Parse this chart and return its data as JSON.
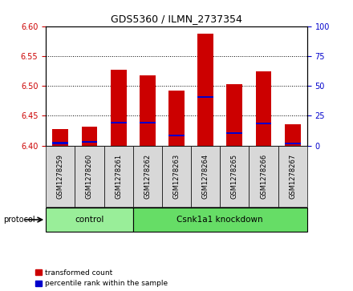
{
  "title": "GDS5360 / ILMN_2737354",
  "samples": [
    "GSM1278259",
    "GSM1278260",
    "GSM1278261",
    "GSM1278262",
    "GSM1278263",
    "GSM1278264",
    "GSM1278265",
    "GSM1278266",
    "GSM1278267"
  ],
  "red_values": [
    6.428,
    6.432,
    6.527,
    6.518,
    6.492,
    6.587,
    6.503,
    6.524,
    6.435
  ],
  "blue_values": [
    6.404,
    6.406,
    6.438,
    6.438,
    6.417,
    6.481,
    6.421,
    6.437,
    6.403
  ],
  "bar_bottom": 6.4,
  "ylim_left": [
    6.4,
    6.6
  ],
  "ylim_right": [
    0,
    100
  ],
  "yticks_left": [
    6.4,
    6.45,
    6.5,
    6.55,
    6.6
  ],
  "yticks_right": [
    0,
    25,
    50,
    75,
    100
  ],
  "red_color": "#cc0000",
  "blue_color": "#0000cc",
  "bar_width": 0.55,
  "groups": [
    {
      "label": "control",
      "indices": [
        0,
        1,
        2
      ],
      "color": "#99ee99"
    },
    {
      "label": "Csnk1a1 knockdown",
      "indices": [
        3,
        4,
        5,
        6,
        7,
        8
      ],
      "color": "#66dd66"
    }
  ],
  "protocol_label": "protocol",
  "legend_items": [
    {
      "label": "transformed count",
      "color": "#cc0000"
    },
    {
      "label": "percentile rank within the sample",
      "color": "#0000cc"
    }
  ],
  "bg_color": "#d8d8d8",
  "plot_bg": "#ffffff"
}
